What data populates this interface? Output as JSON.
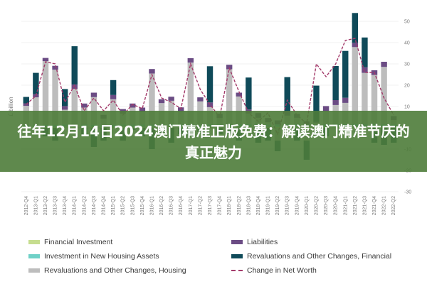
{
  "banner": {
    "title": "往年12月14日2024澳门精准正版免费：解读澳门精准节庆的真正魅力"
  },
  "chart_data": {
    "type": "bar",
    "ylabel": "£ billion",
    "ylim": [
      -30,
      50
    ],
    "yticks": [
      50,
      40,
      30,
      20,
      10,
      0,
      -10,
      -20,
      -30
    ],
    "grid": true,
    "legend_position": "bottom",
    "categories": [
      "2012 Q4",
      "2013 Q1",
      "2013 Q2",
      "2013 Q3",
      "2013 Q4",
      "2014 Q1",
      "2014 Q2",
      "2014 Q3",
      "2014 Q4",
      "2015 Q1",
      "2015 Q2",
      "2015 Q3",
      "2015 Q4",
      "2016 Q1",
      "2016 Q2",
      "2016 Q3",
      "2016 Q4",
      "2017 Q1",
      "2017 Q2",
      "2017 Q3",
      "2017 Q4",
      "2018 Q1",
      "2018 Q2",
      "2018 Q3",
      "2018 Q4",
      "2019 Q1",
      "2019 Q2",
      "2019 Q3",
      "2019 Q4",
      "2020 Q1",
      "2020 Q2",
      "2020 Q3",
      "2020 Q4",
      "2021 Q1",
      "2021 Q2",
      "2021 Q3",
      "2021 Q4",
      "2022 Q1",
      "2022 Q2"
    ],
    "series": [
      {
        "name": "Financial Investment",
        "color": "#c6dd8f",
        "kind": "bar",
        "values": [
          0.5,
          0.5,
          0.4,
          0.5,
          0.6,
          0.4,
          0.5,
          0.5,
          0.3,
          0.4,
          0.6,
          0.5,
          0.5,
          0.4,
          0.6,
          0.7,
          0.5,
          0.5,
          0.4,
          0.6,
          0.5,
          0.4,
          0.5,
          0.6,
          0.5,
          0.5,
          0.4,
          0.5,
          0.6,
          0.5,
          0.6,
          0.5,
          0.5,
          0.4,
          0.6,
          0.5,
          0.5,
          0.4,
          0.4
        ]
      },
      {
        "name": "Investment in New Housing Assets",
        "color": "#6fd1c7",
        "kind": "bar",
        "values": [
          0.8,
          0.8,
          0.9,
          0.8,
          0.9,
          0.9,
          1.0,
          0.9,
          1.0,
          1.0,
          1.0,
          1.0,
          1.0,
          1.1,
          1.0,
          1.0,
          1.1,
          1.1,
          1.0,
          1.1,
          1.1,
          1.1,
          1.2,
          1.1,
          1.2,
          1.1,
          1.2,
          1.2,
          1.1,
          1.0,
          0.8,
          1.2,
          1.2,
          1.3,
          1.3,
          1.3,
          1.3,
          1.2,
          1.2
        ]
      },
      {
        "name": "Revaluations and Other Changes, Housing",
        "color": "#bdbdbd",
        "kind": "bar",
        "values": [
          9,
          13,
          30,
          26,
          7,
          17,
          8,
          13,
          3,
          12,
          5,
          8,
          6,
          24,
          10,
          11,
          6,
          29,
          11,
          8,
          3,
          26,
          13,
          5,
          3,
          1,
          -6,
          4,
          3,
          -6,
          1,
          6,
          9,
          10,
          36,
          24,
          23,
          27,
          2
        ]
      },
      {
        "name": "Liabilities",
        "color": "#6b4c84",
        "kind": "bar",
        "values": [
          1.2,
          1.5,
          1.5,
          1.8,
          1.7,
          2.0,
          1.9,
          2.1,
          1.8,
          2.0,
          2.2,
          1.9,
          2.0,
          2.1,
          1.8,
          1.9,
          2.0,
          2.1,
          1.9,
          2.2,
          2.0,
          2.1,
          1.8,
          1.9,
          2.2,
          2.0,
          1.9,
          2.1,
          1.8,
          1.5,
          0.4,
          2.5,
          2.3,
          2.4,
          2.0,
          2.6,
          2.2,
          2.4,
          1.9
        ]
      },
      {
        "name": "Revaluations and Other Changes, Financial",
        "color": "#0f4a59",
        "kind": "bar",
        "values": [
          3,
          10,
          -4,
          -6,
          8,
          18,
          -4,
          -9,
          -6,
          7,
          -6,
          -1,
          -4,
          -10,
          -4,
          -7,
          -3,
          -4,
          -2,
          17,
          -3,
          -3,
          -6,
          15,
          -7,
          -6,
          -5,
          16,
          -6,
          -9,
          17,
          -4,
          16,
          22,
          14,
          14,
          -7,
          -8,
          -7
        ]
      },
      {
        "name": "Change in Net Worth",
        "color": "#a33a6a",
        "kind": "line",
        "values": [
          11,
          15,
          31,
          30,
          12,
          20,
          8,
          14,
          8,
          13,
          6,
          11,
          9,
          25,
          14,
          12,
          9,
          30,
          18,
          11,
          5,
          28,
          17,
          7,
          3,
          7,
          -3,
          13,
          6,
          2,
          30,
          24,
          30,
          41,
          42,
          26,
          26,
          14,
          6
        ]
      }
    ]
  },
  "legend": {
    "items": [
      {
        "label": "Financial Investment",
        "color": "#c6dd8f",
        "style": "bar"
      },
      {
        "label": "Liabilities",
        "color": "#6b4c84",
        "style": "bar"
      },
      {
        "label": "Investment in New Housing Assets",
        "color": "#6fd1c7",
        "style": "bar"
      },
      {
        "label": "Revaluations and Other Changes, Financial",
        "color": "#0f4a59",
        "style": "bar"
      },
      {
        "label": "Revaluations and Other Changes, Housing",
        "color": "#bdbdbd",
        "style": "bar"
      },
      {
        "label": "Change in Net Worth",
        "color": "#a33a6a",
        "style": "dashed"
      }
    ]
  }
}
